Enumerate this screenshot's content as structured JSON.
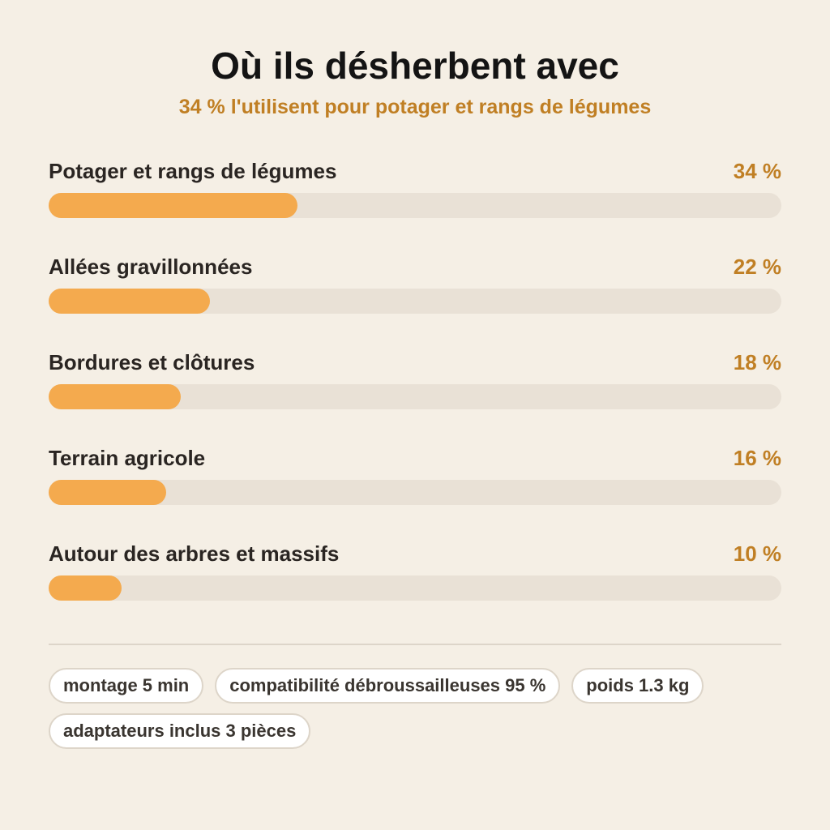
{
  "title": "Où ils désherbent avec",
  "subtitle": "34 % l'utilisent pour potager et rangs de légumes",
  "colors": {
    "background": "#f5efe5",
    "bar_fill": "#f4aa4e",
    "bar_track": "#e9e1d6",
    "accent_text": "#c07f24"
  },
  "chart_data": {
    "type": "bar",
    "orientation": "horizontal",
    "categories": [
      "Potager et rangs de légumes",
      "Allées gravillonnées",
      "Bordures et clôtures",
      "Terrain agricole",
      "Autour des arbres et massifs"
    ],
    "values": [
      34,
      22,
      18,
      16,
      10
    ],
    "value_labels": [
      "34 %",
      "22 %",
      "18 %",
      "16 %",
      "10 %"
    ],
    "xlim": [
      0,
      100
    ],
    "grid": false
  },
  "chips": [
    "montage 5 min",
    "compatibilité débroussailleuses 95 %",
    "poids 1.3 kg",
    "adaptateurs inclus 3 pièces"
  ]
}
